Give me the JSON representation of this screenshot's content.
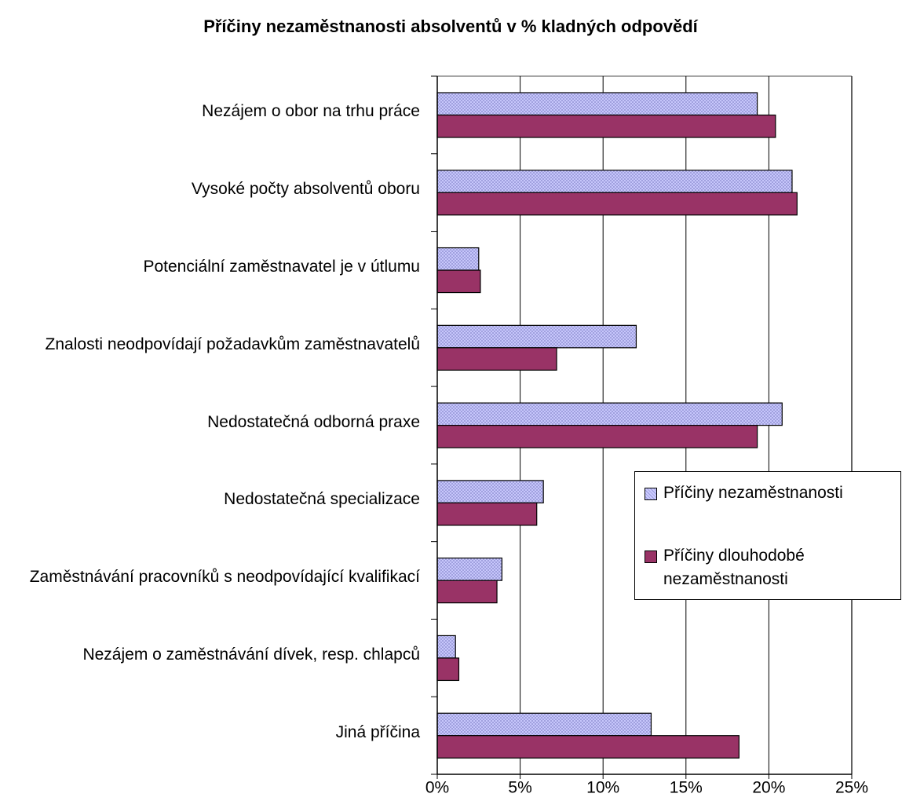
{
  "chart_data": {
    "type": "hbar",
    "title": "Příčiny nezaměstnanosti absolventů v % kladných odpovědí",
    "categories": [
      "Nezájem o obor na trhu práce",
      "Vysoké počty absolventů oboru",
      "Potenciální zaměstnavatel je v útlumu",
      "Znalosti neodpovídají požadavkům zaměstnavatelů",
      "Nedostatečná odborná praxe",
      "Nedostatečná specializace",
      "Zaměstnávání pracovníků s neodpovídající kvalifikací",
      "Nezájem o zaměstnávání dívek, resp. chlapců",
      "Jiná příčina"
    ],
    "series": [
      {
        "name": "Příčiny nezaměstnanosti",
        "color": "#ccccff",
        "values": [
          19.3,
          21.4,
          2.5,
          12.0,
          20.8,
          6.4,
          3.9,
          1.1,
          12.9
        ]
      },
      {
        "name": "Příčiny dlouhodobé nezaměstnanosti",
        "color": "#993366",
        "values": [
          20.4,
          21.7,
          2.6,
          7.2,
          19.3,
          6.0,
          3.6,
          1.3,
          18.2
        ]
      }
    ],
    "xlim": [
      0,
      25
    ],
    "xticks": [
      {
        "value": 0,
        "label": "0%"
      },
      {
        "value": 5,
        "label": "5%"
      },
      {
        "value": 10,
        "label": "10%"
      },
      {
        "value": 15,
        "label": "15%"
      },
      {
        "value": 20,
        "label": "20%"
      },
      {
        "value": 25,
        "label": "25%"
      }
    ],
    "grid": true,
    "legend": "right"
  }
}
